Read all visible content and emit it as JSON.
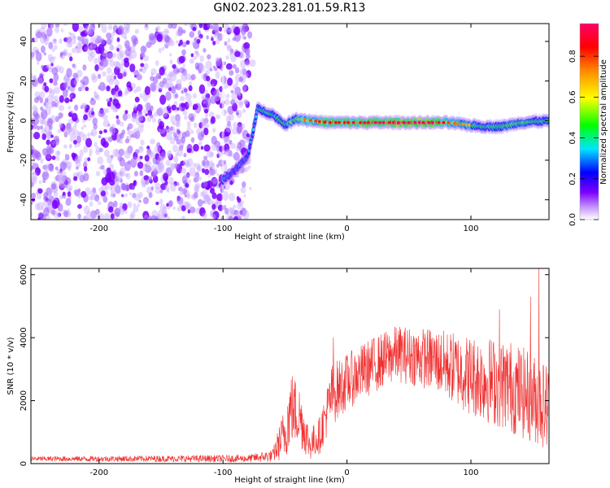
{
  "title": "GN02.2023.281.01.59.R13",
  "colorbar": {
    "label": "Normalized spectral amplitude",
    "ticks": [
      "0.0",
      "0.2",
      "0.4",
      "0.6",
      "0.8"
    ],
    "tick_values": [
      0.0,
      0.2,
      0.4,
      0.6,
      0.8
    ],
    "range": [
      0.0,
      0.96
    ],
    "colors": [
      "#ffffff",
      "#7a00ff",
      "#0000ff",
      "#00e5ff",
      "#00ff00",
      "#ffff00",
      "#ff8800",
      "#ff0000",
      "#ff0066"
    ]
  },
  "chart_data": [
    {
      "type": "heatmap",
      "xlabel": "Height of straight line (km)",
      "ylabel": "Frequency (Hz)",
      "xlim": [
        -255,
        163
      ],
      "ylim": [
        -50,
        49
      ],
      "xticks": [
        -200,
        -100,
        0,
        100
      ],
      "xtick_labels": [
        "-200",
        "-100",
        "0",
        "100"
      ],
      "yticks": [
        -40,
        -20,
        0,
        20,
        40
      ],
      "ytick_labels": [
        "-40",
        "-20",
        "0",
        "20",
        "40"
      ],
      "ridge": [
        {
          "x": -100,
          "y": -30,
          "amp": 0.35
        },
        {
          "x": -90,
          "y": -25,
          "amp": 0.3
        },
        {
          "x": -80,
          "y": -18,
          "amp": 0.3
        },
        {
          "x": -72,
          "y": 6,
          "amp": 0.4
        },
        {
          "x": -60,
          "y": 3,
          "amp": 0.45
        },
        {
          "x": -50,
          "y": -2,
          "amp": 0.45
        },
        {
          "x": -40,
          "y": 1,
          "amp": 0.6
        },
        {
          "x": -30,
          "y": 0,
          "amp": 0.7
        },
        {
          "x": -15,
          "y": -1,
          "amp": 0.75
        },
        {
          "x": 0,
          "y": -1,
          "amp": 0.8
        },
        {
          "x": 20,
          "y": -1,
          "amp": 0.85
        },
        {
          "x": 40,
          "y": -1,
          "amp": 0.9
        },
        {
          "x": 65,
          "y": -1,
          "amp": 0.95
        },
        {
          "x": 80,
          "y": -1,
          "amp": 0.7
        },
        {
          "x": 95,
          "y": -2,
          "amp": 0.6
        },
        {
          "x": 110,
          "y": -3,
          "amp": 0.45
        },
        {
          "x": 125,
          "y": -3,
          "amp": 0.5
        },
        {
          "x": 140,
          "y": -1,
          "amp": 0.5
        },
        {
          "x": 163,
          "y": 0,
          "amp": 0.45
        }
      ]
    },
    {
      "type": "line",
      "xlabel": "Height of straight line (km)",
      "ylabel": "SNR (10 * v/v)",
      "xlim": [
        -255,
        163
      ],
      "ylim": [
        0,
        6200
      ],
      "xticks": [
        -200,
        -100,
        0,
        100
      ],
      "xtick_labels": [
        "-200",
        "-100",
        "0",
        "100"
      ],
      "yticks": [
        0,
        2000,
        4000,
        6000
      ],
      "ytick_labels": [
        "0",
        "2000",
        "4000",
        "6000"
      ],
      "color": "#f03030",
      "envelope": [
        {
          "x": -255,
          "mean": 150,
          "spread": 80
        },
        {
          "x": -80,
          "mean": 160,
          "spread": 120
        },
        {
          "x": -60,
          "mean": 250,
          "spread": 200
        },
        {
          "x": -50,
          "mean": 1000,
          "spread": 900
        },
        {
          "x": -45,
          "mean": 1800,
          "spread": 1200
        },
        {
          "x": -38,
          "mean": 1500,
          "spread": 1000
        },
        {
          "x": -30,
          "mean": 600,
          "spread": 500
        },
        {
          "x": -22,
          "mean": 900,
          "spread": 600
        },
        {
          "x": -12,
          "mean": 2200,
          "spread": 1000
        },
        {
          "x": 0,
          "mean": 2600,
          "spread": 900
        },
        {
          "x": 20,
          "mean": 3100,
          "spread": 900
        },
        {
          "x": 40,
          "mean": 3500,
          "spread": 900
        },
        {
          "x": 70,
          "mean": 3300,
          "spread": 1000
        },
        {
          "x": 100,
          "mean": 2800,
          "spread": 1300
        },
        {
          "x": 130,
          "mean": 2500,
          "spread": 1500
        },
        {
          "x": 163,
          "mean": 1800,
          "spread": 1400
        }
      ],
      "peaks": [
        {
          "x": 155,
          "y": 6200
        },
        {
          "x": 148,
          "y": 5300
        },
        {
          "x": 123,
          "y": 4900
        },
        {
          "x": -11,
          "y": 4000
        }
      ]
    }
  ]
}
